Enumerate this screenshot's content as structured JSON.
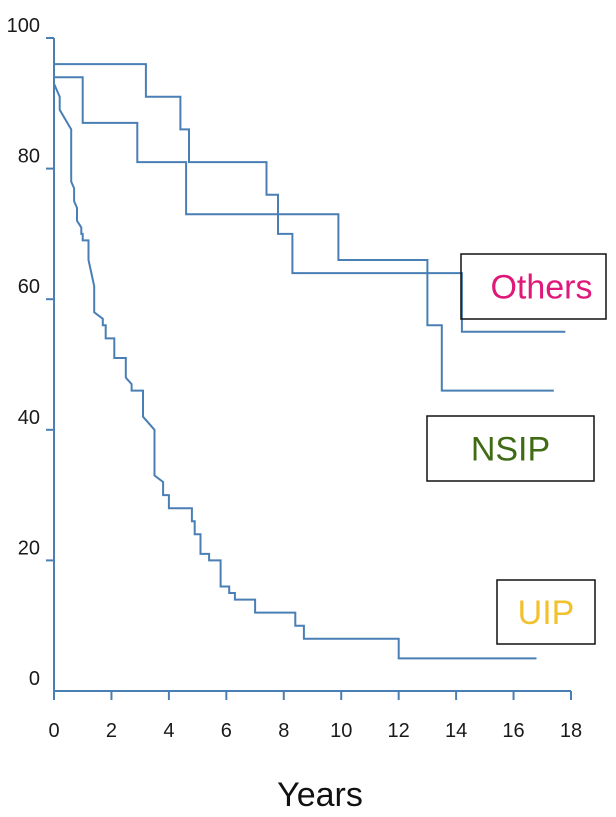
{
  "chart_data": {
    "type": "line",
    "title": "",
    "xlabel": "Years",
    "ylabel": "",
    "xlim": [
      0,
      18
    ],
    "ylim": [
      0,
      100
    ],
    "x_ticks": [
      0,
      2,
      4,
      6,
      8,
      10,
      12,
      14,
      16,
      18
    ],
    "y_ticks": [
      0,
      20,
      40,
      60,
      80,
      100
    ],
    "grid": false,
    "line_color": "#4a7fb5",
    "legend": [
      {
        "label": "Others",
        "color": "#e0187a"
      },
      {
        "label": "NSIP",
        "color": "#3f6b14"
      },
      {
        "label": "UIP",
        "color": "#f2c12e"
      }
    ],
    "series": [
      {
        "step": true,
        "x": [
          0,
          0,
          0.2,
          0.2,
          0.6,
          0.6,
          0.7,
          0.7,
          0.8,
          0.8,
          0.95,
          0.95,
          1.0,
          1.0,
          1.2,
          1.2,
          1.4,
          1.4,
          1.7,
          1.7,
          1.8,
          1.8,
          2.1,
          2.1,
          2.5,
          2.5,
          2.7,
          2.7,
          2.8,
          2.8,
          3.1,
          3.1,
          3.5,
          3.5,
          3.8,
          3.8,
          4.0,
          4.0,
          4.2,
          4.2,
          4.3,
          4.3,
          4.8,
          4.8,
          4.9,
          4.9,
          5.1,
          5.1,
          5.3,
          5.3,
          5.4,
          5.4,
          5.8,
          5.8,
          6.1,
          6.1,
          6.3,
          6.3,
          6.5,
          6.5,
          7.0,
          7.0,
          7.1,
          7.1,
          7.3,
          7.3,
          8.4,
          8.4,
          8.7,
          8.7,
          9.0,
          9.0,
          9.5,
          9.5,
          10.0,
          10.0,
          12.0,
          12.0,
          16.8
        ],
        "y": [
          100,
          93,
          91,
          89,
          86,
          78,
          77,
          75,
          74,
          72,
          71,
          70,
          70,
          69,
          69,
          66,
          62,
          58,
          57,
          56,
          56,
          54,
          54,
          51,
          51,
          48,
          47,
          46,
          46,
          46,
          46,
          42,
          40,
          33,
          32,
          30,
          30,
          28,
          28,
          28,
          28,
          28,
          28,
          26,
          26,
          24,
          24,
          21,
          21,
          21,
          21,
          20,
          20,
          16,
          16,
          15,
          15,
          14,
          14,
          14,
          14,
          12,
          12,
          12,
          12,
          12,
          12,
          10,
          10,
          8,
          8,
          8,
          8,
          8,
          8,
          8,
          8,
          5,
          5
        ]
      },
      {
        "step": true,
        "x": [
          0,
          0,
          0.2,
          0.2,
          1.0,
          1.0,
          2.9,
          2.9,
          4.6,
          4.6,
          7.8,
          7.8,
          8.3,
          8.3,
          13.0,
          13.0,
          13.5,
          13.5,
          17.4
        ],
        "y": [
          100,
          94,
          94,
          94,
          94,
          87,
          87,
          81,
          81,
          73,
          73,
          70,
          70,
          64,
          64,
          56,
          56,
          46,
          46
        ]
      },
      {
        "step": true,
        "x": [
          0,
          0,
          3.2,
          3.2,
          4.4,
          4.4,
          4.7,
          4.7,
          7.4,
          7.4,
          7.8,
          7.8,
          9.9,
          9.9,
          13.0,
          13.0,
          14.2,
          14.2,
          17.8
        ],
        "y": [
          100,
          96,
          96,
          91,
          91,
          86,
          86,
          81,
          81,
          76,
          76,
          73,
          73,
          66,
          66,
          64,
          64,
          55,
          55
        ]
      }
    ]
  }
}
